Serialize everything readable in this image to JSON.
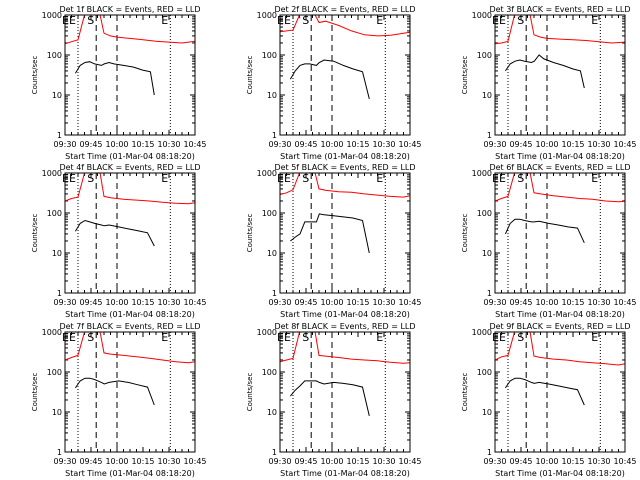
{
  "figure": {
    "ylabel": "Counts/sec",
    "xlabel": "Start Time (01-Mar-04 08:18:20)",
    "legend_text": "BLACK = Events, RED = LLD",
    "xticks": [
      "09:30",
      "09:45",
      "10:00",
      "10:15",
      "10:30",
      "10:45"
    ],
    "yticks": [
      "1",
      "10",
      "100",
      "1000"
    ],
    "marker_labels": {
      "end_start": "E",
      "s": "S",
      "end": "E"
    },
    "colors": {
      "events": "#000000",
      "lld": "#ff0000"
    }
  },
  "chart_data": [
    {
      "type": "line",
      "title": "Det 1f BLACK = Events, RED = LLD",
      "yscale": "log",
      "ylim": [
        1,
        1000
      ],
      "xticks": [
        "09:30",
        "09:45",
        "10:00",
        "10:15",
        "10:30",
        "10:45"
      ],
      "series": [
        {
          "name": "Events",
          "x": [
            0,
            0.05,
            0.1,
            0.15,
            0.2,
            0.27,
            0.3,
            0.35,
            0.4,
            0.5,
            0.6,
            0.7,
            0.78,
            0.82
          ],
          "y": [
            35,
            55,
            65,
            68,
            60,
            55,
            60,
            65,
            60,
            55,
            50,
            42,
            38,
            10
          ]
        },
        {
          "name": "LLD",
          "x": [
            0,
            0.05,
            0.1,
            0.15,
            0.2,
            0.27,
            0.3,
            0.35,
            0.4,
            0.5,
            0.6,
            0.7,
            0.8,
            0.9,
            1.0
          ],
          "y": [
            190,
            215,
            240,
            1000,
            1000,
            1000,
            350,
            300,
            280,
            260,
            240,
            220,
            210,
            200,
            220
          ]
        }
      ]
    },
    {
      "type": "line",
      "title": "Det 2f BLACK = Events, RED = LLD",
      "yscale": "log",
      "ylim": [
        1,
        1000
      ],
      "xticks": [
        "09:30",
        "09:45",
        "10:00",
        "10:15",
        "10:30",
        "10:45"
      ],
      "series": [
        {
          "name": "Events",
          "x": [
            0,
            0.05,
            0.1,
            0.15,
            0.2,
            0.27,
            0.3,
            0.35,
            0.45,
            0.55,
            0.65,
            0.75,
            0.82
          ],
          "y": [
            25,
            40,
            55,
            60,
            60,
            55,
            65,
            75,
            70,
            55,
            45,
            38,
            8
          ]
        },
        {
          "name": "LLD",
          "x": [
            0,
            0.05,
            0.1,
            0.15,
            0.2,
            0.27,
            0.3,
            0.35,
            0.45,
            0.55,
            0.65,
            0.75,
            0.85,
            0.95,
            1.0
          ],
          "y": [
            380,
            400,
            420,
            1000,
            1000,
            1000,
            650,
            700,
            550,
            400,
            320,
            300,
            310,
            350,
            370
          ]
        }
      ]
    },
    {
      "type": "line",
      "title": "Det 3f BLACK = Events, RED = LLD",
      "yscale": "log",
      "ylim": [
        1,
        1000
      ],
      "xticks": [
        "09:30",
        "09:45",
        "10:00",
        "10:15",
        "10:30",
        "10:45"
      ],
      "series": [
        {
          "name": "Events",
          "x": [
            0,
            0.05,
            0.1,
            0.15,
            0.2,
            0.27,
            0.3,
            0.35,
            0.4,
            0.5,
            0.6,
            0.7,
            0.78,
            0.82
          ],
          "y": [
            40,
            60,
            70,
            75,
            70,
            65,
            70,
            100,
            80,
            65,
            55,
            45,
            40,
            15
          ]
        },
        {
          "name": "LLD",
          "x": [
            0,
            0.05,
            0.1,
            0.15,
            0.2,
            0.27,
            0.3,
            0.35,
            0.4,
            0.5,
            0.6,
            0.7,
            0.8,
            0.9,
            1.0
          ],
          "y": [
            190,
            200,
            220,
            1000,
            1000,
            1000,
            320,
            280,
            260,
            250,
            240,
            230,
            215,
            200,
            210
          ]
        }
      ]
    },
    {
      "type": "line",
      "title": "Det 4f BLACK = Events, RED = LLD",
      "yscale": "log",
      "ylim": [
        1,
        1000
      ],
      "xticks": [
        "09:30",
        "09:45",
        "10:00",
        "10:15",
        "10:30",
        "10:45"
      ],
      "series": [
        {
          "name": "Events",
          "x": [
            0,
            0.05,
            0.1,
            0.15,
            0.2,
            0.27,
            0.3,
            0.35,
            0.45,
            0.55,
            0.65,
            0.75,
            0.82
          ],
          "y": [
            35,
            55,
            65,
            60,
            55,
            50,
            48,
            50,
            45,
            40,
            36,
            32,
            15
          ]
        },
        {
          "name": "LLD",
          "x": [
            0,
            0.05,
            0.1,
            0.15,
            0.2,
            0.27,
            0.3,
            0.35,
            0.45,
            0.55,
            0.65,
            0.75,
            0.85,
            0.95,
            1.0
          ],
          "y": [
            200,
            230,
            250,
            1000,
            1000,
            1000,
            260,
            240,
            220,
            210,
            200,
            185,
            175,
            170,
            180
          ]
        }
      ]
    },
    {
      "type": "line",
      "title": "Det 5f BLACK = Events, RED = LLD",
      "yscale": "log",
      "ylim": [
        1,
        1000
      ],
      "xticks": [
        "09:30",
        "09:45",
        "10:00",
        "10:15",
        "10:30",
        "10:45"
      ],
      "series": [
        {
          "name": "Events",
          "x": [
            0,
            0.05,
            0.1,
            0.15,
            0.2,
            0.27,
            0.3,
            0.35,
            0.45,
            0.55,
            0.65,
            0.75,
            0.82
          ],
          "y": [
            20,
            25,
            30,
            60,
            60,
            60,
            95,
            90,
            85,
            80,
            75,
            65,
            10
          ]
        },
        {
          "name": "LLD",
          "x": [
            0,
            0.05,
            0.1,
            0.15,
            0.2,
            0.27,
            0.3,
            0.35,
            0.45,
            0.55,
            0.65,
            0.75,
            0.85,
            0.95,
            1.0
          ],
          "y": [
            290,
            320,
            380,
            1000,
            1000,
            1000,
            400,
            370,
            340,
            330,
            300,
            280,
            260,
            250,
            270
          ]
        }
      ]
    },
    {
      "type": "line",
      "title": "Det 6f BLACK = Events, RED = LLD",
      "yscale": "log",
      "ylim": [
        1,
        1000
      ],
      "xticks": [
        "09:30",
        "09:45",
        "10:00",
        "10:15",
        "10:30",
        "10:45"
      ],
      "series": [
        {
          "name": "Events",
          "x": [
            0,
            0.05,
            0.1,
            0.15,
            0.2,
            0.27,
            0.3,
            0.35,
            0.45,
            0.55,
            0.65,
            0.75,
            0.82
          ],
          "y": [
            30,
            55,
            70,
            70,
            65,
            60,
            60,
            62,
            55,
            50,
            45,
            42,
            18
          ]
        },
        {
          "name": "LLD",
          "x": [
            0,
            0.05,
            0.1,
            0.15,
            0.2,
            0.27,
            0.3,
            0.35,
            0.45,
            0.55,
            0.65,
            0.75,
            0.85,
            0.95,
            1.0
          ],
          "y": [
            200,
            230,
            260,
            1000,
            1000,
            1000,
            320,
            300,
            270,
            250,
            230,
            220,
            200,
            190,
            195
          ]
        }
      ]
    },
    {
      "type": "line",
      "title": "Det 7f BLACK = Events, RED = LLD",
      "yscale": "log",
      "ylim": [
        1,
        1000
      ],
      "xticks": [
        "09:30",
        "09:45",
        "10:00",
        "10:15",
        "10:30",
        "10:45"
      ],
      "series": [
        {
          "name": "Events",
          "x": [
            0,
            0.05,
            0.1,
            0.15,
            0.2,
            0.27,
            0.3,
            0.35,
            0.45,
            0.55,
            0.65,
            0.75,
            0.82
          ],
          "y": [
            40,
            60,
            70,
            70,
            65,
            55,
            50,
            55,
            60,
            55,
            48,
            42,
            15
          ]
        },
        {
          "name": "LLD",
          "x": [
            0,
            0.05,
            0.1,
            0.15,
            0.2,
            0.27,
            0.3,
            0.35,
            0.45,
            0.55,
            0.65,
            0.75,
            0.85,
            0.95,
            1.0
          ],
          "y": [
            200,
            230,
            260,
            1000,
            1000,
            1000,
            300,
            280,
            260,
            240,
            220,
            200,
            180,
            170,
            180
          ]
        }
      ]
    },
    {
      "type": "line",
      "title": "Det 8f BLACK = Events, RED = LLD",
      "yscale": "log",
      "ylim": [
        1,
        1000
      ],
      "xticks": [
        "09:30",
        "09:45",
        "10:00",
        "10:15",
        "10:30",
        "10:45"
      ],
      "series": [
        {
          "name": "Events",
          "x": [
            0,
            0.05,
            0.1,
            0.15,
            0.2,
            0.27,
            0.3,
            0.35,
            0.45,
            0.55,
            0.65,
            0.75,
            0.82
          ],
          "y": [
            25,
            35,
            45,
            60,
            60,
            60,
            55,
            50,
            55,
            52,
            48,
            42,
            8
          ]
        },
        {
          "name": "LLD",
          "x": [
            0,
            0.05,
            0.1,
            0.15,
            0.2,
            0.27,
            0.3,
            0.35,
            0.45,
            0.55,
            0.65,
            0.75,
            0.85,
            0.95,
            1.0
          ],
          "y": [
            180,
            200,
            220,
            1000,
            1000,
            1000,
            260,
            250,
            230,
            210,
            200,
            190,
            175,
            165,
            170
          ]
        }
      ]
    },
    {
      "type": "line",
      "title": "Det 9f BLACK = Events, RED = LLD",
      "yscale": "log",
      "ylim": [
        1,
        1000
      ],
      "xticks": [
        "09:30",
        "09:45",
        "10:00",
        "10:15",
        "10:30",
        "10:45"
      ],
      "series": [
        {
          "name": "Events",
          "x": [
            0,
            0.05,
            0.1,
            0.15,
            0.2,
            0.27,
            0.3,
            0.35,
            0.45,
            0.55,
            0.65,
            0.75,
            0.82
          ],
          "y": [
            40,
            60,
            70,
            70,
            65,
            55,
            52,
            55,
            50,
            45,
            40,
            36,
            15
          ]
        },
        {
          "name": "LLD",
          "x": [
            0,
            0.05,
            0.1,
            0.15,
            0.2,
            0.27,
            0.3,
            0.35,
            0.45,
            0.55,
            0.65,
            0.75,
            0.85,
            0.95,
            1.0
          ],
          "y": [
            200,
            240,
            260,
            1000,
            1000,
            1000,
            250,
            230,
            210,
            200,
            180,
            170,
            160,
            150,
            160
          ]
        }
      ]
    }
  ]
}
